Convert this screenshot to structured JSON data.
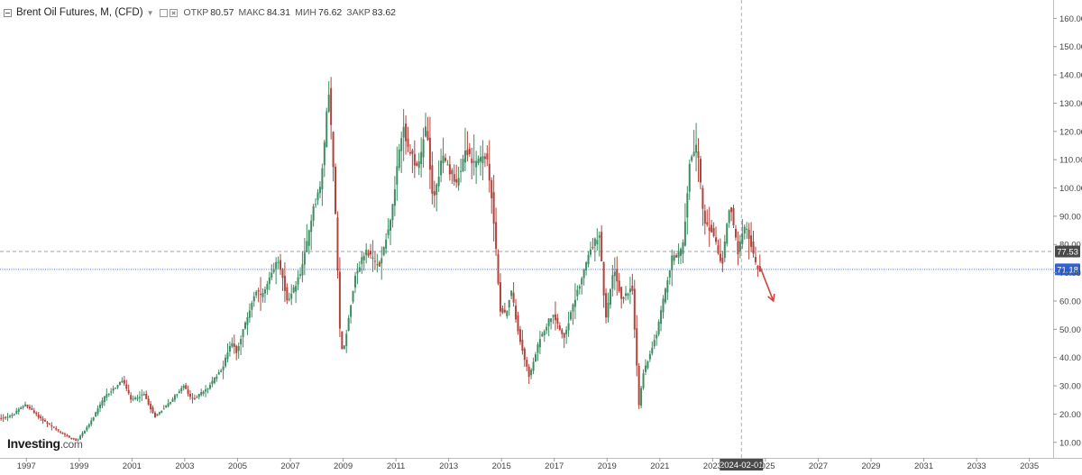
{
  "header": {
    "title": "Brent Oil Futures, M, (CFD)",
    "open_label": "ОТКР",
    "open_value": "80.57",
    "high_label": "МАКС",
    "high_value": "84.31",
    "low_label": "МИН",
    "low_value": "76.62",
    "close_label": "ЗАКР",
    "close_value": "83.62"
  },
  "logo": {
    "name": "Investing",
    "suffix": ".com"
  },
  "crosshair": {
    "date_label": "2024-02-01"
  },
  "price_labels": {
    "dashed_level": {
      "value": 77.53,
      "text": "77.53"
    },
    "current_level": {
      "value": 71.18,
      "text": "71.18"
    }
  },
  "colors": {
    "up": "#3d8c62",
    "down": "#b3423c",
    "current_label_bg": "#2f62d6",
    "dashed_label_bg": "#4a4a4a",
    "arrow": "#d0453b"
  },
  "chart_data": {
    "type": "candlestick",
    "interval": "monthly",
    "ylim": [
      5,
      165
    ],
    "y_ticks": [
      "10.00",
      "20.00",
      "30.00",
      "40.00",
      "50.00",
      "60.00",
      "70.00",
      "80.00",
      "90.00",
      "100.00",
      "110.00",
      "120.00",
      "130.00",
      "140.00",
      "150.00",
      "160.00"
    ],
    "x_ticks": [
      "1997",
      "1999",
      "2001",
      "2003",
      "2005",
      "2007",
      "2009",
      "2011",
      "2013",
      "2015",
      "2017",
      "2019",
      "2021",
      "2023",
      "2025",
      "2027",
      "2029",
      "2031",
      "2033",
      "2035"
    ],
    "trend_anchors": [
      [
        1996.0,
        18.5
      ],
      [
        1996.5,
        19.5
      ],
      [
        1997.0,
        23.5
      ],
      [
        1997.5,
        19.0
      ],
      [
        1998.0,
        15.5
      ],
      [
        1998.5,
        12.5
      ],
      [
        1998.95,
        10.5
      ],
      [
        1999.5,
        17.5
      ],
      [
        2000.0,
        26.0
      ],
      [
        2000.7,
        32.0
      ],
      [
        2001.0,
        25.0
      ],
      [
        2001.5,
        27.0
      ],
      [
        2001.9,
        19.0
      ],
      [
        2002.5,
        24.5
      ],
      [
        2003.0,
        30.0
      ],
      [
        2003.3,
        25.0
      ],
      [
        2003.9,
        29.0
      ],
      [
        2004.5,
        37.0
      ],
      [
        2004.8,
        46.0
      ],
      [
        2005.0,
        42.0
      ],
      [
        2005.7,
        63.0
      ],
      [
        2006.0,
        62.0
      ],
      [
        2006.6,
        75.0
      ],
      [
        2006.95,
        59.0
      ],
      [
        2007.5,
        72.0
      ],
      [
        2007.9,
        93.0
      ],
      [
        2008.2,
        101.0
      ],
      [
        2008.5,
        135.0
      ],
      [
        2008.7,
        102.0
      ],
      [
        2008.95,
        42.0
      ],
      [
        2009.1,
        45.0
      ],
      [
        2009.5,
        69.0
      ],
      [
        2009.9,
        78.0
      ],
      [
        2010.4,
        72.0
      ],
      [
        2010.9,
        92.0
      ],
      [
        2011.3,
        123.0
      ],
      [
        2011.5,
        113.0
      ],
      [
        2011.9,
        107.0
      ],
      [
        2012.2,
        123.0
      ],
      [
        2012.45,
        95.0
      ],
      [
        2012.8,
        111.0
      ],
      [
        2013.3,
        101.0
      ],
      [
        2013.7,
        114.0
      ],
      [
        2014.0,
        108.0
      ],
      [
        2014.45,
        112.0
      ],
      [
        2014.7,
        95.0
      ],
      [
        2014.99,
        57.0
      ],
      [
        2015.2,
        55.0
      ],
      [
        2015.4,
        64.0
      ],
      [
        2015.7,
        48.0
      ],
      [
        2015.99,
        37.0
      ],
      [
        2016.1,
        33.0
      ],
      [
        2016.5,
        47.0
      ],
      [
        2016.99,
        56.0
      ],
      [
        2017.4,
        47.0
      ],
      [
        2017.9,
        63.0
      ],
      [
        2018.4,
        78.0
      ],
      [
        2018.75,
        84.0
      ],
      [
        2018.99,
        53.0
      ],
      [
        2019.3,
        72.0
      ],
      [
        2019.6,
        60.0
      ],
      [
        2019.99,
        66.0
      ],
      [
        2020.25,
        23.0
      ],
      [
        2020.4,
        34.0
      ],
      [
        2020.9,
        48.0
      ],
      [
        2021.5,
        75.0
      ],
      [
        2021.9,
        78.0
      ],
      [
        2022.2,
        112.0
      ],
      [
        2022.45,
        115.0
      ],
      [
        2022.7,
        88.0
      ],
      [
        2022.99,
        85.0
      ],
      [
        2023.4,
        73.0
      ],
      [
        2023.7,
        95.0
      ],
      [
        2023.99,
        77.0
      ],
      [
        2024.3,
        87.0
      ],
      [
        2024.5,
        80.0
      ],
      [
        2024.7,
        72.0
      ],
      [
        2024.8,
        71.18
      ]
    ],
    "forecast_arrow": {
      "from": [
        2024.8,
        72.0
      ],
      "to": [
        2025.3,
        60.0
      ]
    },
    "horizontal_lines": [
      {
        "value": 77.53,
        "style": "dashed"
      },
      {
        "value": 71.18,
        "style": "dotted"
      }
    ],
    "crosshair_x": 2024.09
  }
}
